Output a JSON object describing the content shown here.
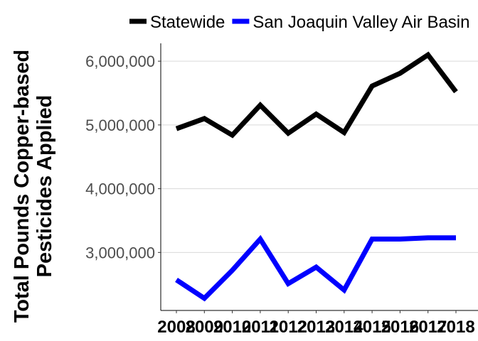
{
  "chart_data": {
    "type": "line",
    "title": "",
    "xlabel": "",
    "ylabel_lines": [
      "Total Pounds Copper-based",
      "Pesticides Applied"
    ],
    "x": [
      2008,
      2009,
      2010,
      2011,
      2012,
      2013,
      2014,
      2015,
      2016,
      2017,
      2018
    ],
    "x_tick_labels": [
      "2008",
      "2009",
      "2010",
      "2011",
      "2012",
      "2013",
      "2014",
      "2015",
      "2016",
      "2017",
      "2018"
    ],
    "ylim": [
      2090000,
      6280000
    ],
    "y_ticks": [
      3000000,
      4000000,
      5000000,
      6000000
    ],
    "y_tick_labels": [
      "3,000,000",
      "4,000,000",
      "5,000,000",
      "6,000,000"
    ],
    "grid": "horizontal major",
    "legend_position": "top",
    "series": [
      {
        "name": "Statewide",
        "color": "#000000",
        "values": [
          4940000,
          5100000,
          4840000,
          5310000,
          4870000,
          5170000,
          4880000,
          5610000,
          5810000,
          6100000,
          5520000
        ]
      },
      {
        "name": "San Joaquin Valley Air Basin",
        "color": "#0000ff",
        "values": [
          2570000,
          2280000,
          2720000,
          3210000,
          2510000,
          2770000,
          2410000,
          3210000,
          3210000,
          3230000,
          3230000
        ]
      }
    ]
  }
}
